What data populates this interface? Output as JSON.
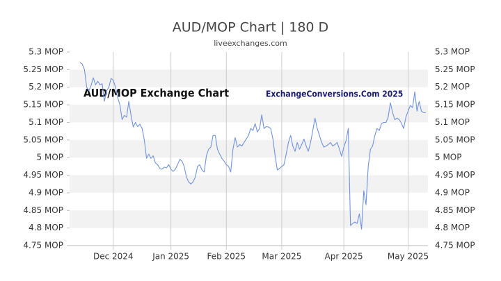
{
  "chart_data": {
    "type": "line",
    "title": "AUD/MOP Chart | 180 D",
    "subtitle": "liveexchanges.com",
    "annotations": [
      "AUD/MOP Exchange Chart",
      "ExchangeConversions.Com 2025"
    ],
    "categories": [
      null,
      null,
      null,
      null,
      null,
      null,
      null,
      null,
      null,
      null,
      null,
      null,
      null,
      null,
      null,
      "Dec 2024",
      null,
      null,
      null,
      null,
      null,
      null,
      null,
      null,
      null,
      null,
      null,
      null,
      null,
      null,
      null,
      null,
      null,
      null,
      null,
      null,
      null,
      null,
      null,
      null,
      null,
      "Jan 2025",
      null,
      null,
      null,
      null,
      null,
      null,
      null,
      null,
      null,
      null,
      null,
      null,
      null,
      null,
      null,
      null,
      null,
      null,
      null,
      null,
      null,
      null,
      null,
      null,
      "Feb 2025",
      null,
      null,
      null,
      null,
      null,
      null,
      null,
      null,
      null,
      null,
      null,
      null,
      null,
      null,
      null,
      null,
      null,
      null,
      null,
      null,
      null,
      null,
      null,
      null,
      "Mar 2025",
      null,
      null,
      null,
      null,
      null,
      null,
      null,
      null,
      null,
      null,
      null,
      null,
      null,
      null,
      null,
      null,
      null,
      null,
      null,
      null,
      null,
      null,
      null,
      null,
      null,
      null,
      null,
      "Apr 2025",
      null,
      null,
      null,
      null,
      null,
      null,
      null,
      null,
      null,
      null,
      null,
      null,
      null,
      null,
      null,
      null,
      null,
      null,
      null,
      null,
      null,
      null,
      null,
      null,
      null,
      null,
      null,
      null,
      "May 2025",
      null,
      null,
      null,
      null,
      null,
      null,
      null,
      null
    ],
    "series": [
      {
        "name": "AUD/MOP",
        "color": "#6f93dc",
        "values": [
          5.27,
          5.266,
          5.25,
          5.2,
          5.19,
          5.205,
          5.227,
          5.207,
          5.217,
          5.207,
          5.21,
          5.16,
          5.19,
          5.2,
          5.225,
          5.22,
          5.2,
          5.17,
          5.15,
          5.108,
          5.12,
          5.115,
          5.16,
          5.12,
          5.087,
          5.1,
          5.088,
          5.095,
          5.083,
          5.05,
          4.998,
          5.01,
          4.998,
          5.005,
          4.985,
          4.98,
          4.969,
          4.967,
          4.973,
          4.971,
          4.98,
          4.967,
          4.961,
          4.967,
          4.98,
          4.995,
          4.99,
          4.975,
          4.945,
          4.931,
          4.925,
          4.931,
          4.945,
          4.975,
          4.98,
          4.965,
          4.959,
          5.005,
          5.024,
          5.03,
          5.063,
          5.063,
          5.024,
          5.01,
          4.998,
          4.99,
          4.98,
          4.975,
          4.959,
          5.024,
          5.057,
          5.03,
          5.037,
          5.033,
          5.043,
          5.053,
          5.063,
          5.083,
          5.077,
          5.097,
          5.073,
          5.083,
          5.122,
          5.083,
          5.088,
          5.087,
          5.083,
          5.053,
          5.005,
          4.965,
          4.969,
          4.975,
          4.98,
          5.01,
          5.043,
          5.063,
          5.033,
          5.018,
          5.043,
          5.024,
          5.037,
          5.053,
          5.033,
          5.018,
          5.043,
          5.077,
          5.112,
          5.083,
          5.063,
          5.043,
          5.03,
          5.033,
          5.037,
          5.043,
          5.033,
          5.037,
          5.043,
          5.024,
          5.004,
          5.03,
          5.048,
          5.083,
          4.807,
          4.813,
          4.817,
          4.813,
          4.84,
          4.797,
          4.906,
          4.866,
          4.975,
          5.024,
          5.033,
          5.063,
          5.083,
          5.077,
          5.097,
          5.1,
          5.1,
          5.115,
          5.156,
          5.128,
          5.108,
          5.112,
          5.108,
          5.097,
          5.083,
          5.115,
          5.132,
          5.148,
          5.142,
          5.187,
          5.132,
          5.16,
          5.132,
          5.128,
          5.128
        ]
      }
    ],
    "ylim": [
      4.75,
      5.3
    ],
    "yticks": [
      {
        "value": 4.75,
        "label": "4.75 MOP"
      },
      {
        "value": 4.8,
        "label": "4.8 MOP"
      },
      {
        "value": 4.85,
        "label": "4.85 MOP"
      },
      {
        "value": 4.9,
        "label": "4.9 MOP"
      },
      {
        "value": 4.95,
        "label": "4.95 MOP"
      },
      {
        "value": 5,
        "label": "5 MOP"
      },
      {
        "value": 5.05,
        "label": "5.05 MOP"
      },
      {
        "value": 5.1,
        "label": "5.1 MOP"
      },
      {
        "value": 5.15,
        "label": "5.15 MOP"
      },
      {
        "value": 5.2,
        "label": "5.2 MOP"
      },
      {
        "value": 5.25,
        "label": "5.25 MOP"
      },
      {
        "value": 5.3,
        "label": "5.3 MOP"
      }
    ],
    "grid": true
  }
}
